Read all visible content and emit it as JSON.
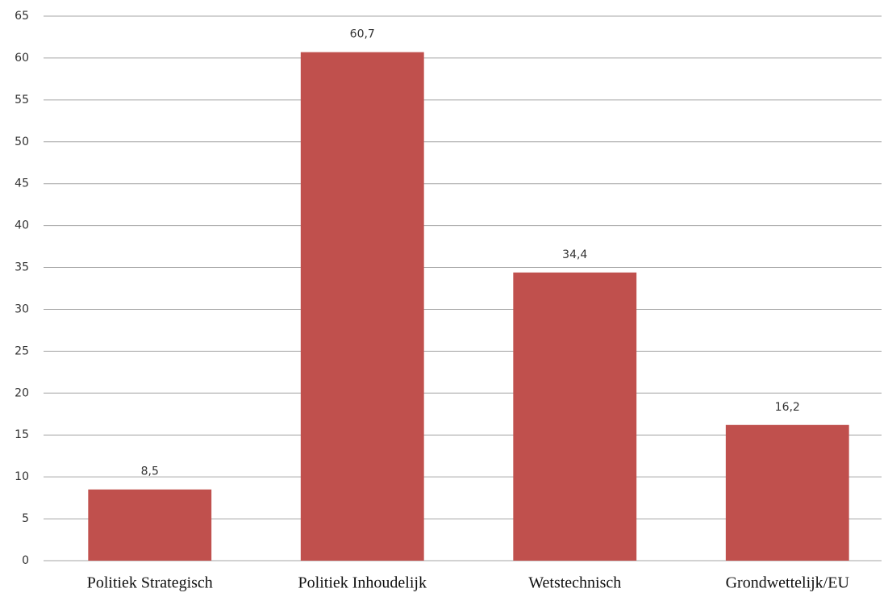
{
  "chart_data": {
    "type": "bar",
    "categories": [
      "Politiek Strategisch",
      "Politiek Inhoudelijk",
      "Wetstechnisch",
      "Grondwettelijk/EU"
    ],
    "values": [
      8.5,
      60.7,
      34.4,
      16.2
    ],
    "value_labels": [
      "8,5",
      "60,7",
      "34,4",
      "16,2"
    ],
    "color": "#c0504d",
    "ylim": [
      0,
      65
    ],
    "yticks": [
      0,
      5,
      10,
      15,
      20,
      25,
      30,
      35,
      40,
      45,
      50,
      55,
      60,
      65
    ],
    "grid": true
  }
}
